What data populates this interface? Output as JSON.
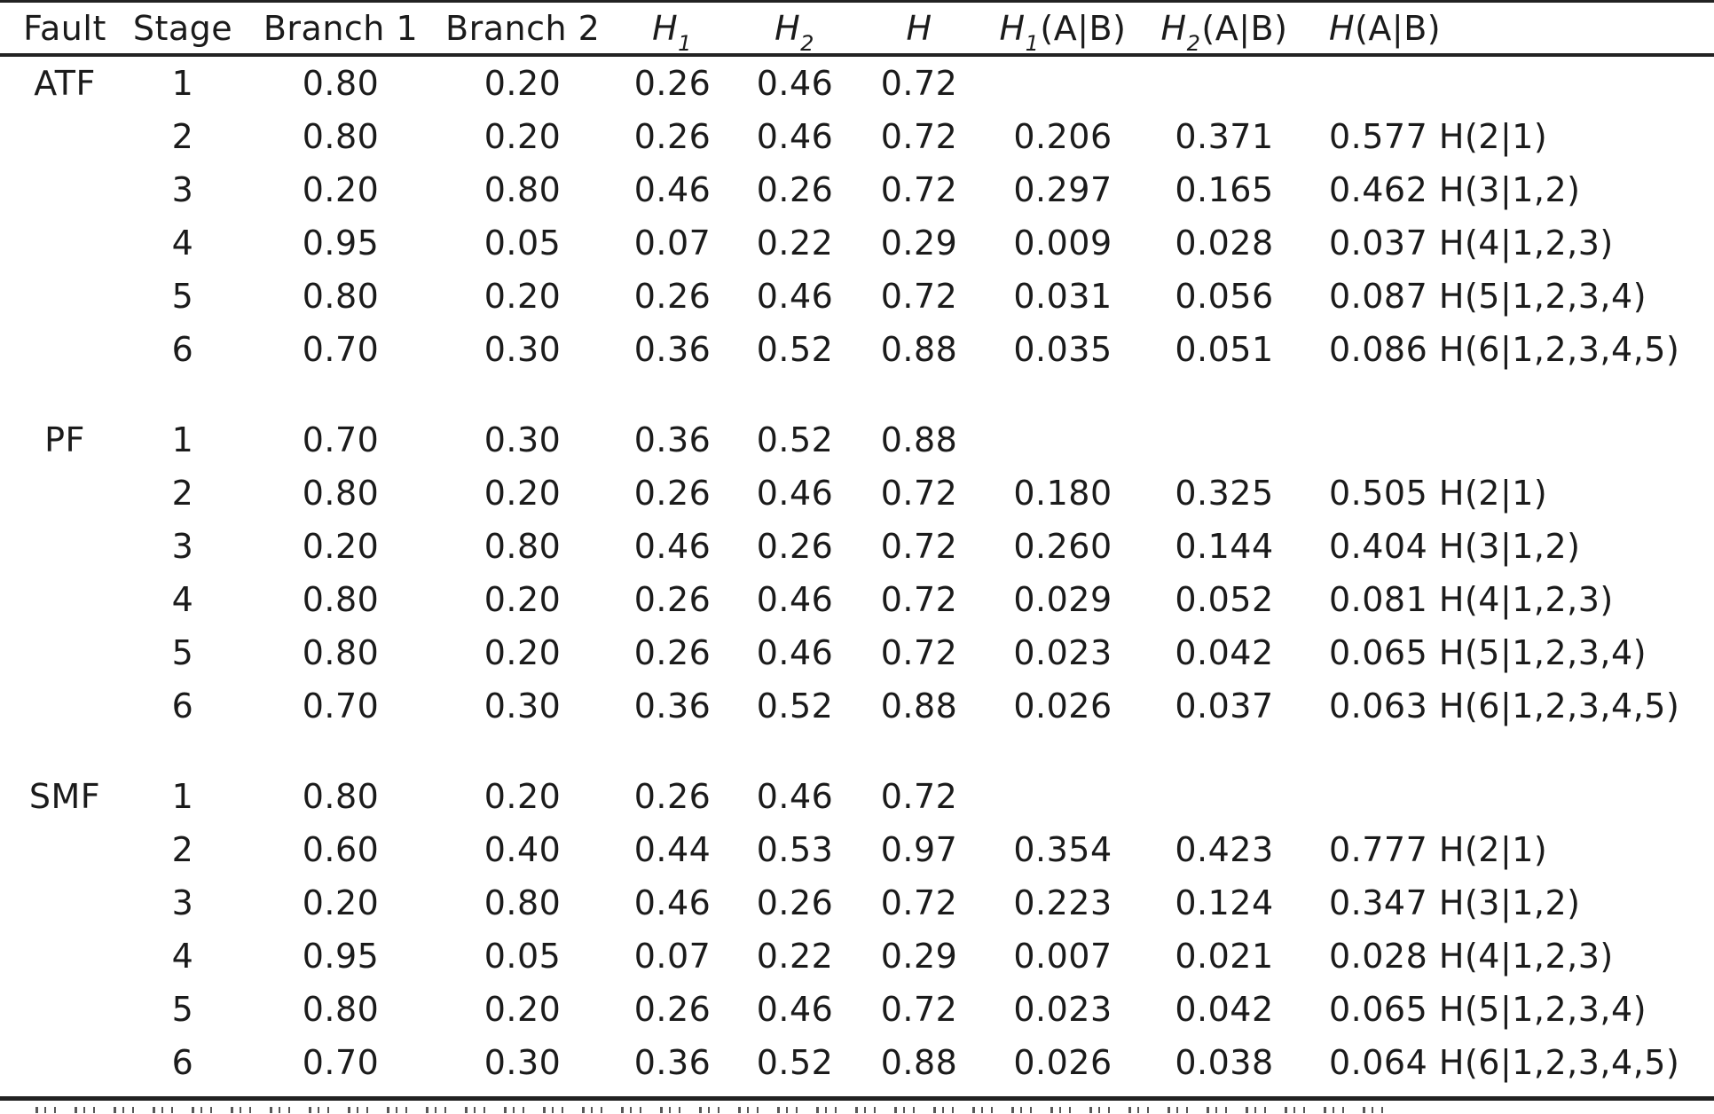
{
  "colors": {
    "background": "#ffffff",
    "text": "#1b1b1b",
    "rule": "#222222"
  },
  "columns": [
    {
      "label": "Fault"
    },
    {
      "label": "Stage"
    },
    {
      "label": "Branch 1"
    },
    {
      "label": "Branch 2"
    },
    {
      "h": "H",
      "sub": "1"
    },
    {
      "h": "H",
      "sub": "2"
    },
    {
      "h": "H"
    },
    {
      "h": "H",
      "sub": "1",
      "rest": "(A|B)"
    },
    {
      "h": "H",
      "sub": "2",
      "rest": "(A|B)"
    },
    {
      "h": "H",
      "rest": "(A|B)"
    }
  ],
  "row_keys": [
    "stage",
    "branch1",
    "branch2",
    "h1",
    "h2",
    "h",
    "h1_ab",
    "h2_ab",
    "h_ab"
  ],
  "sections": [
    {
      "fault": "ATF",
      "rows": [
        [
          "1",
          "0.80",
          "0.20",
          "0.26",
          "0.46",
          "0.72",
          "",
          "",
          ""
        ],
        [
          "2",
          "0.80",
          "0.20",
          "0.26",
          "0.46",
          "0.72",
          "0.206",
          "0.371",
          "0.577 H(2|1)"
        ],
        [
          "3",
          "0.20",
          "0.80",
          "0.46",
          "0.26",
          "0.72",
          "0.297",
          "0.165",
          "0.462 H(3|1,2)"
        ],
        [
          "4",
          "0.95",
          "0.05",
          "0.07",
          "0.22",
          "0.29",
          "0.009",
          "0.028",
          "0.037 H(4|1,2,3)"
        ],
        [
          "5",
          "0.80",
          "0.20",
          "0.26",
          "0.46",
          "0.72",
          "0.031",
          "0.056",
          "0.087 H(5|1,2,3,4)"
        ],
        [
          "6",
          "0.70",
          "0.30",
          "0.36",
          "0.52",
          "0.88",
          "0.035",
          "0.051",
          "0.086 H(6|1,2,3,4,5)"
        ]
      ]
    },
    {
      "fault": "PF",
      "rows": [
        [
          "1",
          "0.70",
          "0.30",
          "0.36",
          "0.52",
          "0.88",
          "",
          "",
          ""
        ],
        [
          "2",
          "0.80",
          "0.20",
          "0.26",
          "0.46",
          "0.72",
          "0.180",
          "0.325",
          "0.505 H(2|1)"
        ],
        [
          "3",
          "0.20",
          "0.80",
          "0.46",
          "0.26",
          "0.72",
          "0.260",
          "0.144",
          "0.404 H(3|1,2)"
        ],
        [
          "4",
          "0.80",
          "0.20",
          "0.26",
          "0.46",
          "0.72",
          "0.029",
          "0.052",
          "0.081 H(4|1,2,3)"
        ],
        [
          "5",
          "0.80",
          "0.20",
          "0.26",
          "0.46",
          "0.72",
          "0.023",
          "0.042",
          "0.065 H(5|1,2,3,4)"
        ],
        [
          "6",
          "0.70",
          "0.30",
          "0.36",
          "0.52",
          "0.88",
          "0.026",
          "0.037",
          "0.063 H(6|1,2,3,4,5)"
        ]
      ]
    },
    {
      "fault": "SMF",
      "rows": [
        [
          "1",
          "0.80",
          "0.20",
          "0.26",
          "0.46",
          "0.72",
          "",
          "",
          ""
        ],
        [
          "2",
          "0.60",
          "0.40",
          "0.44",
          "0.53",
          "0.97",
          "0.354",
          "0.423",
          "0.777 H(2|1)"
        ],
        [
          "3",
          "0.20",
          "0.80",
          "0.46",
          "0.26",
          "0.72",
          "0.223",
          "0.124",
          "0.347 H(3|1,2)"
        ],
        [
          "4",
          "0.95",
          "0.05",
          "0.07",
          "0.22",
          "0.29",
          "0.007",
          "0.021",
          "0.028 H(4|1,2,3)"
        ],
        [
          "5",
          "0.80",
          "0.20",
          "0.26",
          "0.46",
          "0.72",
          "0.023",
          "0.042",
          "0.065 H(5|1,2,3,4)"
        ],
        [
          "6",
          "0.70",
          "0.30",
          "0.36",
          "0.52",
          "0.88",
          "0.026",
          "0.038",
          "0.064 H(6|1,2,3,4,5)"
        ]
      ]
    }
  ]
}
